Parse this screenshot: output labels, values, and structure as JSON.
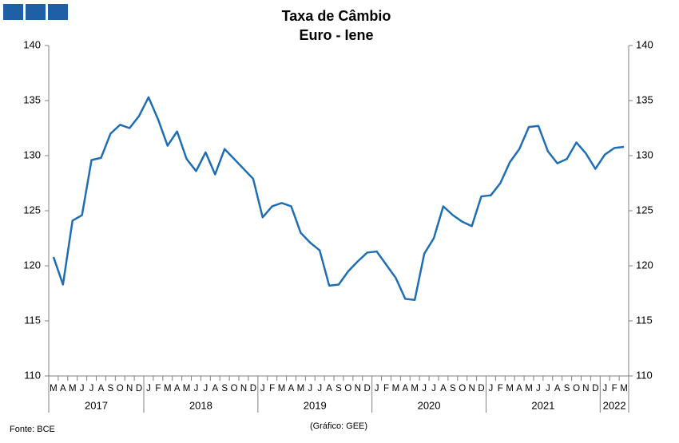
{
  "chart_data": {
    "type": "line",
    "title": "Taxa de Câmbio",
    "subtitle": "Euro - Iene",
    "categories": [
      "M",
      "A",
      "M",
      "J",
      "J",
      "A",
      "S",
      "O",
      "N",
      "D",
      "J",
      "F",
      "M",
      "A",
      "M",
      "J",
      "J",
      "A",
      "S",
      "O",
      "N",
      "D",
      "J",
      "F",
      "M",
      "A",
      "M",
      "J",
      "J",
      "A",
      "S",
      "O",
      "N",
      "D",
      "J",
      "F",
      "M",
      "A",
      "M",
      "J",
      "J",
      "A",
      "S",
      "O",
      "N",
      "D",
      "J",
      "F",
      "M",
      "A",
      "M",
      "J",
      "J",
      "A",
      "S",
      "O",
      "N",
      "D",
      "J",
      "F",
      "M"
    ],
    "years": [
      "2017",
      "2018",
      "2019",
      "2020",
      "2021",
      "2022"
    ],
    "series": [
      {
        "name": "Euro - Iene",
        "color": "#1f6eb5",
        "values": [
          120.8,
          118.3,
          124.1,
          124.6,
          129.6,
          129.8,
          132.0,
          132.8,
          132.5,
          133.6,
          135.3,
          133.3,
          130.9,
          132.2,
          129.7,
          128.6,
          130.3,
          128.3,
          130.6,
          129.7,
          128.8,
          127.9,
          124.4,
          125.4,
          125.7,
          125.4,
          123.0,
          122.1,
          121.4,
          118.2,
          118.3,
          119.5,
          120.4,
          121.2,
          121.3,
          120.1,
          118.9,
          117.0,
          116.9,
          121.1,
          122.5,
          125.4,
          124.6,
          124.0,
          123.6,
          126.3,
          126.4,
          127.5,
          129.4,
          130.6,
          132.6,
          132.7,
          130.4,
          129.3,
          129.7,
          131.2,
          130.2,
          128.8,
          130.1,
          130.7,
          130.8
        ]
      }
    ],
    "ylim": [
      110,
      140
    ],
    "yticks": [
      110,
      115,
      120,
      125,
      130,
      135,
      140
    ],
    "y2lim": [
      110,
      140
    ],
    "y2ticks": [
      110,
      115,
      120,
      125,
      130,
      135,
      140
    ],
    "source": "Fonte: BCE",
    "credit": "(Gráfico: GEE)"
  }
}
